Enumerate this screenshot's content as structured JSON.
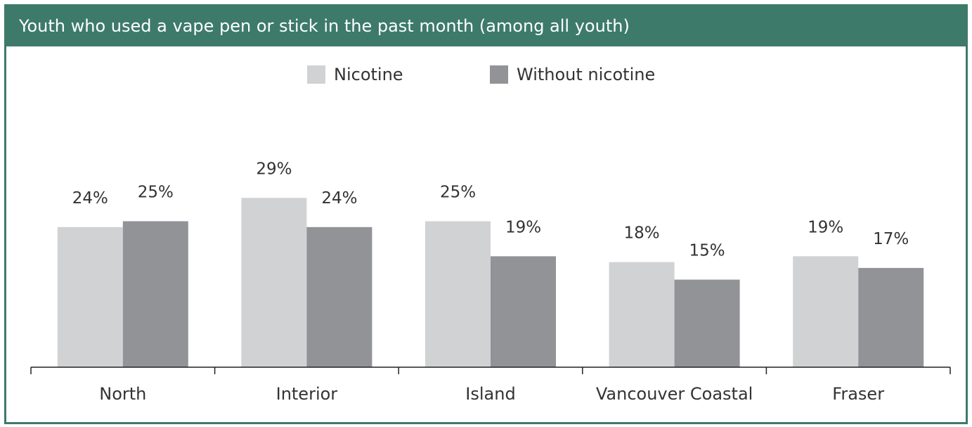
{
  "chart_data": {
    "type": "bar",
    "title": "Youth who used a vape pen or stick in the past month (among all youth)",
    "categories": [
      "North",
      "Interior",
      "Island",
      "Vancouver Coastal",
      "Fraser"
    ],
    "series": [
      {
        "name": "Nicotine",
        "values": [
          24,
          29,
          25,
          18,
          19
        ],
        "color": "#d1d2d4"
      },
      {
        "name": "Without nicotine",
        "values": [
          25,
          24,
          19,
          15,
          17
        ],
        "color": "#929397"
      }
    ],
    "value_labels": {
      "Nicotine": [
        "24%",
        "29%",
        "25%",
        "18%",
        "19%"
      ],
      "Without nicotine": [
        "25%",
        "24%",
        "19%",
        "15%",
        "17%"
      ]
    },
    "ylim": [
      0,
      35
    ],
    "grid": false,
    "legend_position": "top-center",
    "xlabel": "",
    "ylabel": ""
  }
}
